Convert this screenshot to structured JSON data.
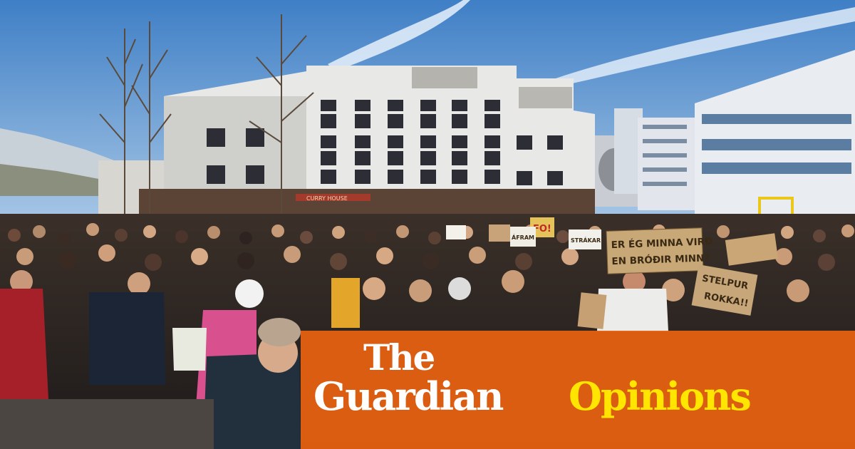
{
  "image": {
    "description_tag": "protest-crowd-town-square"
  },
  "banner": {
    "the": "The",
    "guardian": "Guardian",
    "opinions": "Opinions",
    "colors": {
      "background": "#e86210",
      "wordmark": "#ffffff",
      "section": "#ffe500"
    }
  },
  "signs": {
    "main_line1": "ER ÉG MINNA VIRÐ",
    "main_line2": "EN BRÓÐIR MINN?",
    "stelpur_line1": "STELPUR",
    "stelpur_line2": "ROKKA!!",
    "fo": "FO!",
    "afram": "ÁFRAM",
    "strakar": "STRÁKAR"
  },
  "storefront": {
    "shop_sign": "CURRY HOUSE"
  }
}
